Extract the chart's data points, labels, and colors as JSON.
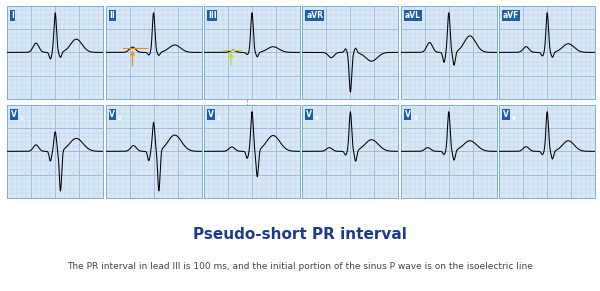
{
  "title": "Pseudo-short PR interval",
  "subtitle": "The PR interval in lead III is 100 ms, and the initial portion of the sinus P wave is on the isoelectric line",
  "title_color": "#1a3c8f",
  "title_fontsize": 11,
  "subtitle_fontsize": 6.5,
  "background": "#ffffff",
  "grid_bg": "#d8e8f5",
  "grid_line_minor": "#b8d0ea",
  "grid_line_major": "#a0bce0",
  "label_bg": "#1a5faa",
  "label_color": "#ffffff",
  "leads": [
    "I",
    "II",
    "III",
    "aVR",
    "aVL",
    "aVF",
    "V1",
    "V2",
    "V3",
    "V4",
    "V5",
    "V6"
  ],
  "outer_border": "#7ab0d8",
  "panel_border": "#7ab0d8"
}
